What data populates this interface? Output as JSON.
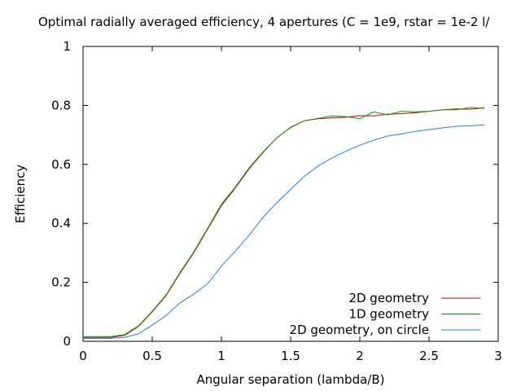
{
  "chart_data": {
    "type": "line",
    "title": "Optimal radially averaged efficiency, 4 apertures (C = 1e9, rstar = 1e-2 l/",
    "xlabel": "Angular separation (lambda/B)",
    "ylabel": "Efficiency",
    "xlim": [
      0,
      3
    ],
    "ylim": [
      0,
      1
    ],
    "xticks": [
      "0",
      "0.5",
      "1",
      "1.5",
      "2",
      "2.5",
      "3"
    ],
    "yticks": [
      "0",
      "0.2",
      "0.4",
      "0.6",
      "0.8",
      "1"
    ],
    "grid": false,
    "legend_position": "bottom-right",
    "x": [
      0,
      0.1,
      0.2,
      0.3,
      0.4,
      0.5,
      0.6,
      0.7,
      0.8,
      0.9,
      1.0,
      1.1,
      1.2,
      1.3,
      1.4,
      1.5,
      1.6,
      1.7,
      1.8,
      1.9,
      2.0,
      2.1,
      2.2,
      2.3,
      2.4,
      2.5,
      2.6,
      2.7,
      2.8,
      2.9
    ],
    "series": [
      {
        "name": "2D geometry",
        "color": "#c00000",
        "values": [
          0.013,
          0.013,
          0.013,
          0.02,
          0.05,
          0.1,
          0.155,
          0.23,
          0.3,
          0.38,
          0.46,
          0.52,
          0.585,
          0.64,
          0.69,
          0.725,
          0.748,
          0.755,
          0.758,
          0.76,
          0.765,
          0.765,
          0.77,
          0.772,
          0.775,
          0.78,
          0.785,
          0.788,
          0.787,
          0.792
        ]
      },
      {
        "name": "1D geometry",
        "color": "#00a000",
        "values": [
          0.016,
          0.016,
          0.016,
          0.023,
          0.052,
          0.102,
          0.157,
          0.233,
          0.303,
          0.383,
          0.465,
          0.523,
          0.588,
          0.642,
          0.69,
          0.726,
          0.748,
          0.756,
          0.765,
          0.762,
          0.755,
          0.778,
          0.768,
          0.78,
          0.778,
          0.78,
          0.785,
          0.785,
          0.793,
          0.79
        ]
      },
      {
        "name": "2D geometry, on circle",
        "color": "#2080e0",
        "values": [
          0.01,
          0.01,
          0.01,
          0.013,
          0.025,
          0.055,
          0.087,
          0.13,
          0.16,
          0.195,
          0.255,
          0.305,
          0.36,
          0.42,
          0.47,
          0.515,
          0.56,
          0.595,
          0.622,
          0.645,
          0.665,
          0.682,
          0.696,
          0.703,
          0.712,
          0.718,
          0.724,
          0.729,
          0.731,
          0.734
        ]
      }
    ]
  }
}
